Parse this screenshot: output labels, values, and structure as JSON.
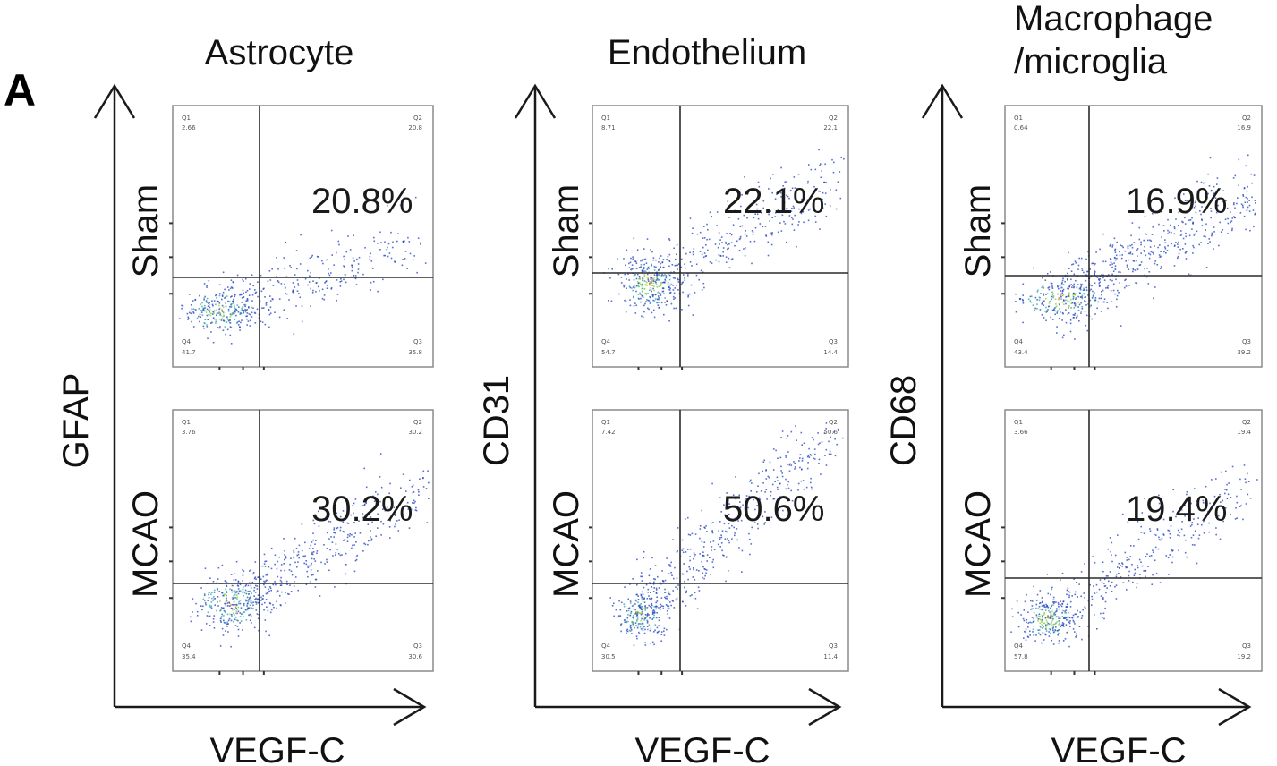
{
  "panel_label": "A",
  "chart_data": [
    {
      "type": "scatter",
      "title": "Astrocyte",
      "xlabel": "VEGF-C",
      "ylabel": "GFAP",
      "colors": {
        "low": "#1f3fbf",
        "mid": "#2aa0a0",
        "high": "#7fd23a",
        "peak": "#e06a1c"
      },
      "plots": [
        {
          "row": "Sham",
          "percent_label": "20.8%",
          "quadrants": {
            "Q1_label": "Q1",
            "Q1": "2.66",
            "Q2_label": "Q2",
            "Q2": "20.8",
            "Q3_label": "Q3",
            "Q3": "35.8",
            "Q4_label": "Q4",
            "Q4": "41.7"
          }
        },
        {
          "row": "MCAO",
          "percent_label": "30.2%",
          "quadrants": {
            "Q1_label": "Q1",
            "Q1": "3.76",
            "Q2_label": "Q2",
            "Q2": "30.2",
            "Q3_label": "Q3",
            "Q3": "30.6",
            "Q4_label": "Q4",
            "Q4": "35.4"
          }
        }
      ]
    },
    {
      "type": "scatter",
      "title": "Endothelium",
      "xlabel": "VEGF-C",
      "ylabel": "CD31",
      "colors": {
        "low": "#1f3fbf",
        "mid": "#2aa0a0",
        "high": "#7fd23a",
        "peak": "#e06a1c"
      },
      "plots": [
        {
          "row": "Sham",
          "percent_label": "22.1%",
          "quadrants": {
            "Q1_label": "Q1",
            "Q1": "8.71",
            "Q2_label": "Q2",
            "Q2": "22.1",
            "Q3_label": "Q3",
            "Q3": "14.4",
            "Q4_label": "Q4",
            "Q4": "54.7"
          }
        },
        {
          "row": "MCAO",
          "percent_label": "50.6%",
          "quadrants": {
            "Q1_label": "Q1",
            "Q1": "7.42",
            "Q2_label": "Q2",
            "Q2": "50.6",
            "Q3_label": "Q3",
            "Q3": "11.4",
            "Q4_label": "Q4",
            "Q4": "30.5"
          }
        }
      ]
    },
    {
      "type": "scatter",
      "title": "Macrophage\n/microglia",
      "xlabel": "VEGF-C",
      "ylabel": "CD68",
      "colors": {
        "low": "#1f3fbf",
        "mid": "#2aa0a0",
        "high": "#7fd23a",
        "peak": "#e06a1c"
      },
      "plots": [
        {
          "row": "Sham",
          "percent_label": "16.9%",
          "quadrants": {
            "Q1_label": "Q1",
            "Q1": "0.64",
            "Q2_label": "Q2",
            "Q2": "16.9",
            "Q3_label": "Q3",
            "Q3": "39.2",
            "Q4_label": "Q4",
            "Q4": "43.4"
          }
        },
        {
          "row": "MCAO",
          "percent_label": "19.4%",
          "quadrants": {
            "Q1_label": "Q1",
            "Q1": "3.66",
            "Q2_label": "Q2",
            "Q2": "19.4",
            "Q3_label": "Q3",
            "Q3": "19.2",
            "Q4_label": "Q4",
            "Q4": "57.8"
          }
        }
      ]
    }
  ]
}
